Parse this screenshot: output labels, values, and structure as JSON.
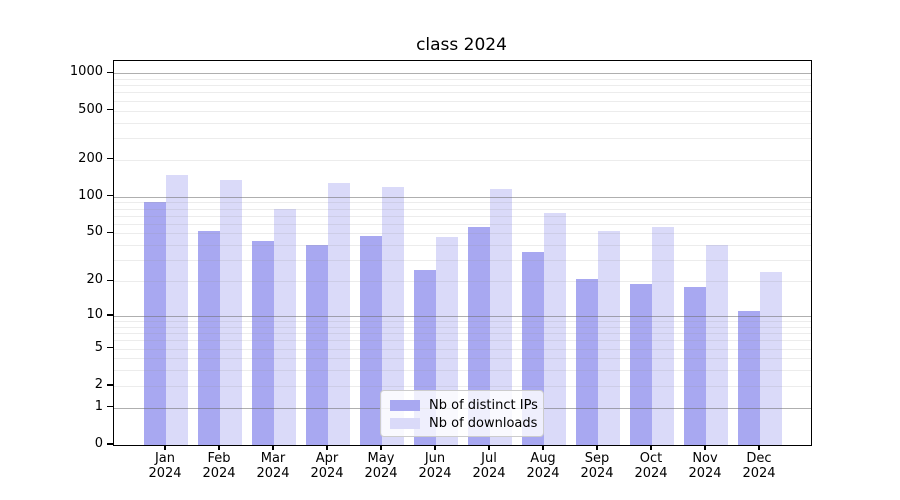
{
  "title": "class 2024",
  "chart_data": {
    "type": "bar",
    "title": "class 2024",
    "xlabel": "",
    "ylabel": "",
    "y_scale": "log1p",
    "ylim": [
      0,
      1000
    ],
    "y_ticks": [
      1000,
      500,
      200,
      100,
      50,
      20,
      10,
      5,
      2,
      1,
      0
    ],
    "y_minor_gridlines": [
      2,
      3,
      4,
      5,
      6,
      7,
      8,
      9,
      20,
      30,
      40,
      50,
      60,
      70,
      80,
      90,
      200,
      300,
      400,
      500,
      600,
      700,
      800,
      900
    ],
    "y_major_gridlines": [
      1,
      10,
      100,
      1000
    ],
    "categories": [
      "Jan",
      "Feb",
      "Mar",
      "Apr",
      "May",
      "Jun",
      "Jul",
      "Aug",
      "Sep",
      "Oct",
      "Nov",
      "Dec"
    ],
    "x_year_label": "2024",
    "grid": "horizontal major+minor, drawn over bars",
    "legend_position": "bottom-center",
    "series": [
      {
        "name": "Nb of distinct IPs",
        "color": "#a8a8f1",
        "values": [
          90,
          52,
          43,
          40,
          48,
          25,
          57,
          35,
          21,
          19,
          18,
          11
        ]
      },
      {
        "name": "Nb of downloads",
        "color": "#dadaf9",
        "values": [
          150,
          138,
          80,
          130,
          120,
          47,
          115,
          74,
          52,
          57,
          40,
          24
        ]
      }
    ]
  }
}
